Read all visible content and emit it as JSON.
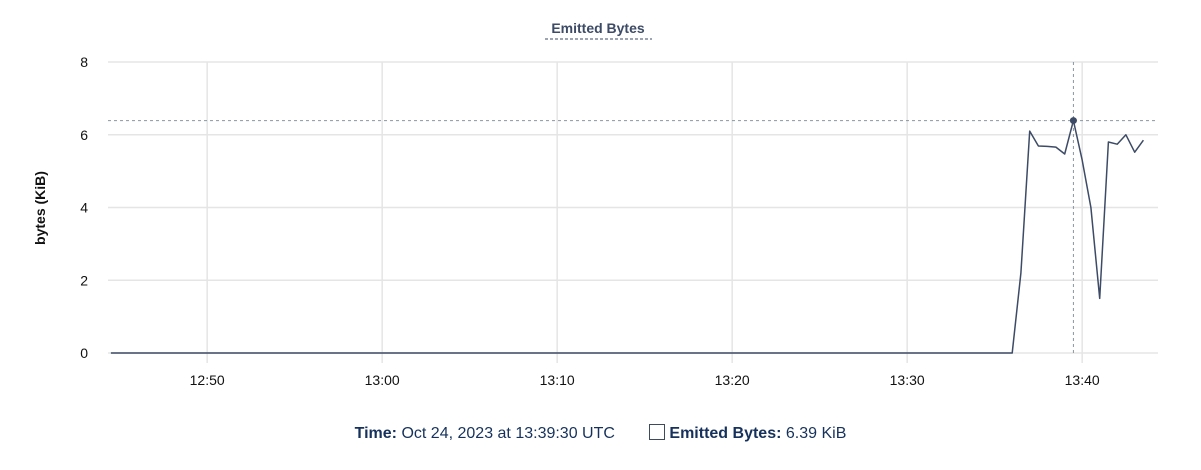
{
  "chart_data": {
    "type": "line",
    "title": "Emitted Bytes",
    "xlabel": "",
    "ylabel": "bytes (KiB)",
    "ylim": [
      0,
      8
    ],
    "yticks": [
      "0",
      "2",
      "4",
      "6",
      "8"
    ],
    "xticks": [
      "12:50",
      "13:00",
      "13:10",
      "13:20",
      "13:30",
      "13:40"
    ],
    "xlim": [
      "12:44:20",
      "13:44:20"
    ],
    "grid": true,
    "line_color": "#3d4b66",
    "series": [
      {
        "x": [
          "12:44:30",
          "13:36:00",
          "13:36:30",
          "13:37:00",
          "13:37:30",
          "13:38:00",
          "13:38:30",
          "13:39:00",
          "13:39:30",
          "13:40:00",
          "13:40:30",
          "13:41:00",
          "13:41:30",
          "13:42:00",
          "13:42:30",
          "13:43:00",
          "13:43:30"
        ],
        "values": [
          0,
          0,
          2.2,
          6.1,
          5.69,
          5.68,
          5.66,
          5.47,
          6.39,
          5.3,
          4.0,
          1.5,
          5.8,
          5.74,
          6.0,
          5.52,
          5.85
        ]
      }
    ],
    "hover": {
      "x": "13:39:30",
      "value": 6.39
    }
  },
  "tooltip": {
    "time_label": "Time:",
    "time_value": "Oct 24, 2023 at 13:39:30 UTC",
    "series_label": "Emitted Bytes:",
    "series_value": "6.39 KiB"
  }
}
